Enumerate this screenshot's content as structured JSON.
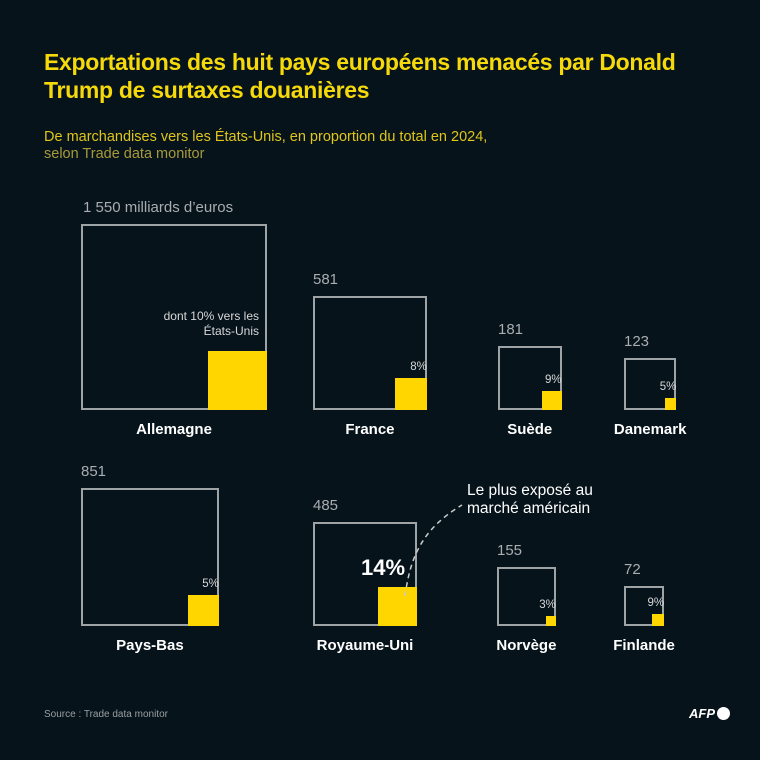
{
  "title": "Exportations des huit pays européens menacés par Donald Trump de surtaxes douanières",
  "subtitle": "De marchandises vers les États-Unis, en proportion du total en 2024,",
  "subtitle_source": "selon Trade data monitor",
  "annotation": "Le plus exposé au marché américain",
  "source": "Source : Trade data monitor",
  "logo": "AFP",
  "colors": {
    "background": "#06131b",
    "accent": "#ffd600",
    "outline": "#9ea3a6"
  },
  "chart_data": {
    "type": "proportional-squares",
    "unit": "milliards d'euros",
    "categories": [
      "Allemagne",
      "France",
      "Suède",
      "Danemark",
      "Pays-Bas",
      "Royaume-Uni",
      "Norvège",
      "Finlande"
    ],
    "total_labels": [
      "1 550 milliards d’euros",
      "581",
      "181",
      "123",
      "851",
      "485",
      "155",
      "72"
    ],
    "totals": [
      1550,
      581,
      181,
      123,
      851,
      485,
      155,
      72
    ],
    "share_us_pct": [
      10,
      8,
      9,
      5,
      5,
      14,
      3,
      9
    ],
    "share_labels": [
      "dont 10% vers les États-Unis",
      "8%",
      "9%",
      "5%",
      "5%",
      "14%",
      "3%",
      "9%"
    ]
  }
}
